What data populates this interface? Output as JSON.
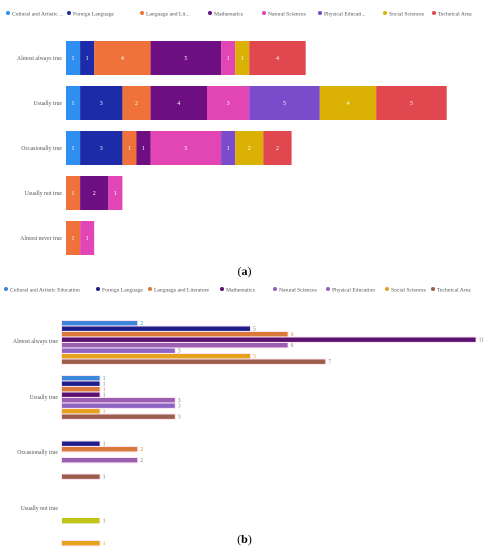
{
  "figure": {
    "caption_a_letter": "a",
    "caption_b_letter": "b"
  },
  "chart_data": [
    {
      "type": "bar",
      "stacked": true,
      "orientation": "horizontal",
      "title": "",
      "xlabel": "",
      "ylabel": "",
      "legend_position": "top",
      "grid": false,
      "legend_entries": [
        "Cultural and Artistic ...",
        "Foreign Language",
        "Language and Lit...",
        "Mathematics",
        "Natural Sciences",
        "Physical Educati...",
        "Social Sciences",
        "Technical Area"
      ],
      "categories": [
        "Almost always true",
        "Usually true",
        "Occasionally true",
        "Usually not true",
        "Almost never true"
      ],
      "series": [
        {
          "name": "Cultural and Artistic Education",
          "color": "#2f8ff0",
          "values": [
            1,
            1,
            1,
            0,
            0
          ]
        },
        {
          "name": "Foreign Language",
          "color": "#1c2ca8",
          "values": [
            1,
            3,
            3,
            0,
            0
          ]
        },
        {
          "name": "Language and Literature",
          "color": "#ee7239",
          "values": [
            4,
            2,
            1,
            1,
            1
          ]
        },
        {
          "name": "Mathematics",
          "color": "#6d0f82",
          "values": [
            5,
            4,
            1,
            2,
            0
          ]
        },
        {
          "name": "Natural Sciences",
          "color": "#e146b4",
          "values": [
            1,
            3,
            5,
            1,
            1
          ]
        },
        {
          "name": "Physical Education",
          "color": "#7a4ccb",
          "values": [
            0,
            5,
            1,
            0,
            0
          ]
        },
        {
          "name": "Social Sciences",
          "color": "#dcb106",
          "values": [
            1,
            4,
            2,
            0,
            0
          ]
        },
        {
          "name": "Technical Area",
          "color": "#e0474f",
          "values": [
            4,
            5,
            2,
            0,
            0
          ]
        }
      ]
    },
    {
      "type": "bar",
      "stacked": false,
      "orientation": "horizontal",
      "title": "",
      "xlabel": "",
      "ylabel": "",
      "legend_position": "top",
      "grid": false,
      "xlim": [
        0,
        11
      ],
      "categories": [
        "Almost always true",
        "Usually true",
        "Occasionally true",
        "Usually not true"
      ],
      "series": [
        {
          "name": "Cultural and Artistic Education",
          "color": "#3c86dc",
          "label_color": "#1aa3a3",
          "values": [
            2,
            1,
            0,
            0
          ]
        },
        {
          "name": "Foreign Language",
          "color": "#1f1f8a",
          "label_color": "#7a7a7a",
          "values": [
            5,
            1,
            1,
            0
          ]
        },
        {
          "name": "Language and Literature",
          "color": "#d97a3a",
          "label_color": "#d97a3a",
          "values": [
            6,
            1,
            2,
            0
          ]
        },
        {
          "name": "Mathematics",
          "color": "#5b1270",
          "label_color": "#7a7a7a",
          "values": [
            11,
            1,
            0,
            0
          ]
        },
        {
          "name": "Natural Sciences",
          "color": "#9a5fb0",
          "label_color": "#7a7a7a",
          "values": [
            6,
            3,
            2,
            0
          ]
        },
        {
          "name": "Physical Education",
          "color": "#8d63c4",
          "label_color": "#7a7a7a",
          "values": [
            3,
            3,
            0,
            0
          ]
        },
        {
          "name": "Social Sciences",
          "color": "#e6a21c",
          "label_color": "#e6a21c",
          "values": [
            5,
            1,
            0,
            1
          ]
        },
        {
          "name": "Technical Area",
          "color": "#9c5e4c",
          "label_color": "#7a7a7a",
          "values": [
            7,
            3,
            1,
            0
          ]
        }
      ],
      "extra_bars": [
        {
          "category": "Usually not true",
          "color": "#c3c41a",
          "value": 1
        }
      ]
    }
  ]
}
